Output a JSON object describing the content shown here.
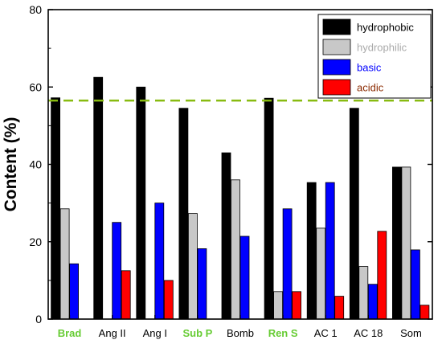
{
  "chart_data": {
    "type": "bar",
    "ylabel": "Content (%)",
    "ylim": [
      0,
      80
    ],
    "yticks": [
      "0",
      "20",
      "40",
      "60",
      "80"
    ],
    "categories": [
      "Brad",
      "Ang II",
      "Ang I",
      "Sub P",
      "Bomb",
      "Ren S",
      "AC 1",
      "AC 18",
      "Som"
    ],
    "highlighted_categories": [
      "Brad",
      "Sub P",
      "Ren S"
    ],
    "highlight_color": "#66cc33",
    "series": [
      {
        "name": "hydrophobic",
        "color": "#000000",
        "values": [
          57.2,
          62.5,
          60.0,
          54.5,
          43.0,
          57.1,
          35.3,
          54.5,
          39.3
        ]
      },
      {
        "name": "hydrophilic",
        "color": "#c8c8c8",
        "values": [
          28.5,
          0,
          0,
          27.3,
          36.0,
          7.1,
          23.5,
          13.6,
          39.3
        ]
      },
      {
        "name": "basic",
        "color": "#0000ff",
        "values": [
          14.3,
          25.0,
          30.0,
          18.2,
          21.4,
          28.5,
          35.3,
          9.0,
          17.9
        ]
      },
      {
        "name": "acidic",
        "color": "#ff0000",
        "values": [
          0,
          12.5,
          10.0,
          0,
          0,
          7.1,
          5.9,
          22.7,
          3.6
        ]
      }
    ],
    "reference_line": {
      "y": 56.5,
      "color": "#88bb11",
      "style": "dashed"
    },
    "legend_position": "top-right",
    "grid": false
  }
}
